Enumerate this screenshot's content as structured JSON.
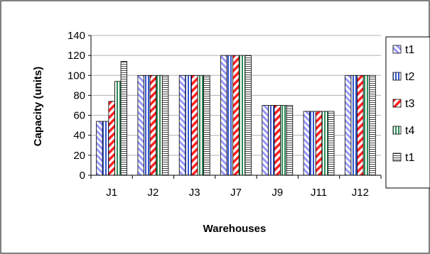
{
  "chart_data": {
    "type": "bar",
    "title": "",
    "xlabel": "Warehouses",
    "ylabel": "Capacity (units)",
    "ylim": [
      0,
      140
    ],
    "yticks": [
      0,
      20,
      40,
      60,
      80,
      100,
      120,
      140
    ],
    "grid": true,
    "legend_position": "right",
    "categories": [
      "J1",
      "J2",
      "J3",
      "J7",
      "J9",
      "J11",
      "J12"
    ],
    "series": [
      {
        "name": "t1",
        "values": [
          54,
          100,
          100,
          120,
          70,
          64,
          100
        ],
        "pattern": "diag-left",
        "color": "#9999ff"
      },
      {
        "name": "t2",
        "values": [
          54,
          100,
          100,
          120,
          70,
          64,
          100
        ],
        "pattern": "vertical",
        "color": "#3355cc"
      },
      {
        "name": "t3",
        "values": [
          74,
          100,
          100,
          120,
          70,
          64,
          100
        ],
        "pattern": "diag-right",
        "color": "#ff2222"
      },
      {
        "name": "t4",
        "values": [
          94,
          100,
          100,
          120,
          70,
          64,
          100
        ],
        "pattern": "vertical-green",
        "color": "#2e8b57"
      },
      {
        "name": "t1",
        "values": [
          114,
          100,
          100,
          120,
          70,
          64,
          100
        ],
        "pattern": "horizontal",
        "color": "#444444"
      }
    ]
  }
}
